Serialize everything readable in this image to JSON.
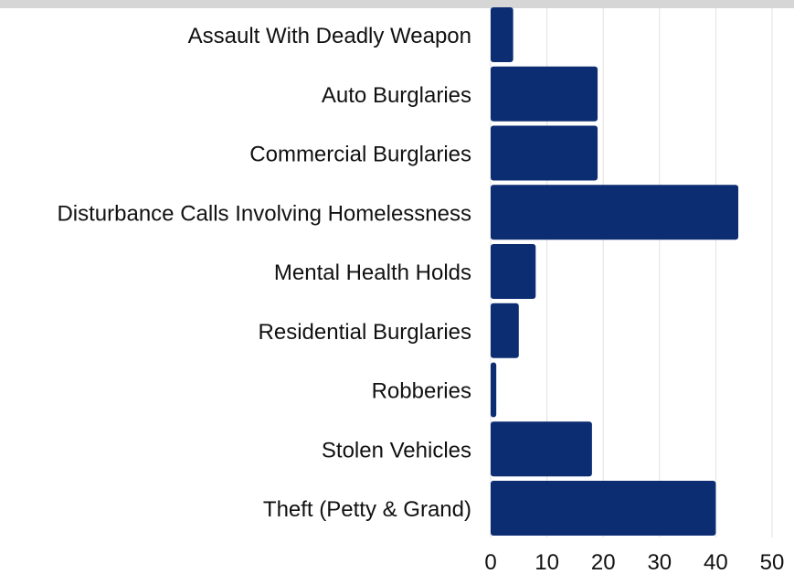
{
  "chart_data": {
    "type": "bar",
    "orientation": "horizontal",
    "categories": [
      "Assault With Deadly Weapon",
      "Auto Burglaries",
      "Commercial Burglaries",
      "Disturbance Calls Involving Homelessness",
      "Mental Health Holds",
      "Residential Burglaries",
      "Robberies",
      "Stolen Vehicles",
      "Theft (Petty & Grand)"
    ],
    "values": [
      4,
      19,
      19,
      44,
      8,
      5,
      1,
      18,
      40
    ],
    "xlim": [
      0,
      50
    ],
    "xticks": [
      0,
      10,
      20,
      30,
      40,
      50
    ],
    "grid": "vertical",
    "bar_color": "#0d2d72",
    "title": "",
    "xlabel": "",
    "ylabel": ""
  }
}
